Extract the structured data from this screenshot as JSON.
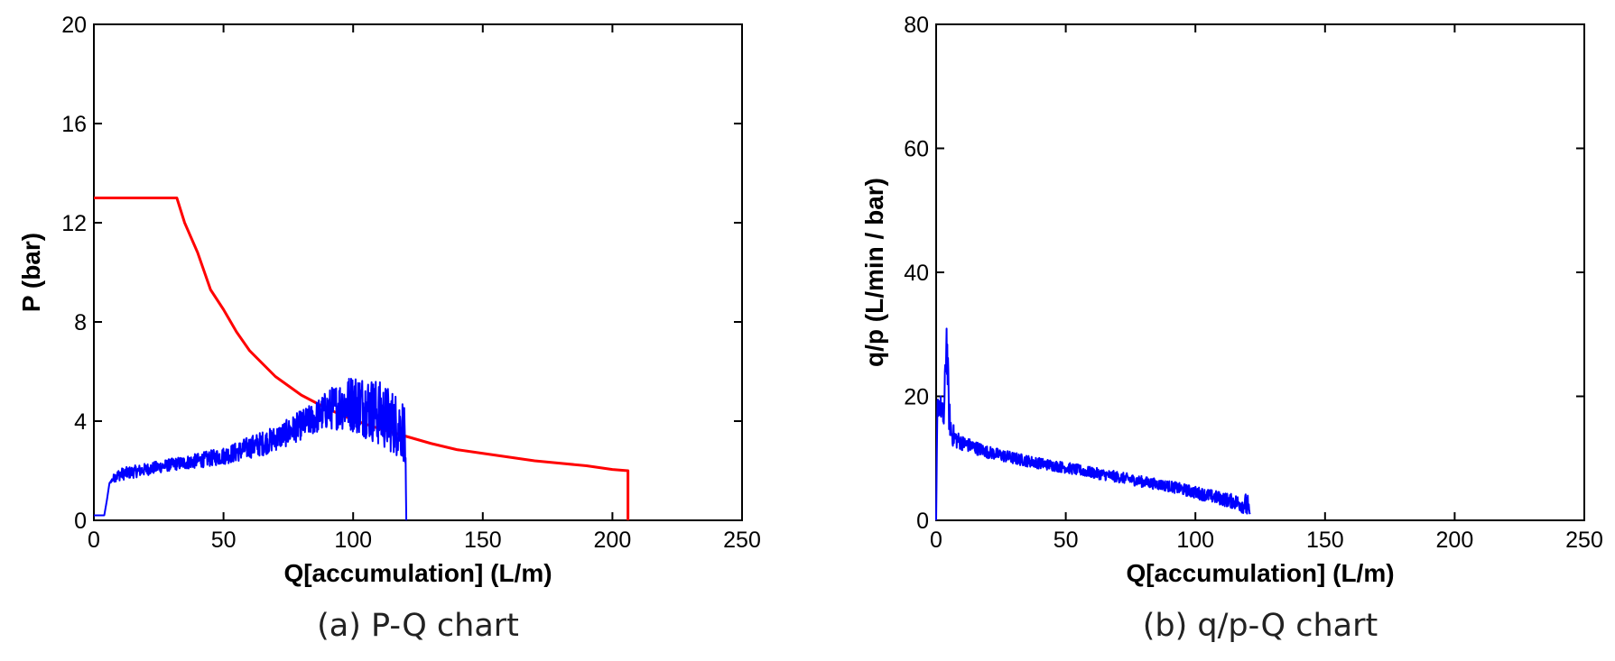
{
  "chart_data": [
    {
      "type": "line",
      "caption": "(a) P-Q chart",
      "xlabel": "Q[accumulation] (L/m)",
      "ylabel": "P (bar)",
      "xlim": [
        0,
        250
      ],
      "ylim": [
        0,
        20
      ],
      "xticks": [
        "0",
        "50",
        "100",
        "150",
        "200",
        "250"
      ],
      "yticks": [
        "0",
        "4",
        "8",
        "12",
        "16",
        "20"
      ],
      "grid": false,
      "series": [
        {
          "color": "#ff0000",
          "style": "smooth",
          "x": [
            0,
            32,
            35,
            40,
            45,
            50,
            55,
            60,
            70,
            80,
            90,
            100,
            110,
            120,
            130,
            140,
            150,
            160,
            170,
            180,
            190,
            200,
            206,
            206
          ],
          "y": [
            13,
            13,
            12.0,
            10.8,
            9.3,
            8.5,
            7.6,
            6.85,
            5.8,
            5.05,
            4.5,
            4.05,
            3.7,
            3.4,
            3.1,
            2.85,
            2.7,
            2.55,
            2.4,
            2.3,
            2.2,
            2.05,
            2.0,
            0
          ]
        },
        {
          "color": "#0000ff",
          "style": "noisy",
          "x": [
            0,
            4,
            5,
            6,
            8,
            10,
            15,
            20,
            30,
            40,
            50,
            55,
            60,
            65,
            70,
            75,
            80,
            85,
            90,
            95,
            100,
            105,
            110,
            115,
            119,
            120,
            120.5
          ],
          "y": [
            0.2,
            0.2,
            0.8,
            1.5,
            1.75,
            1.85,
            1.95,
            2.05,
            2.25,
            2.4,
            2.6,
            2.75,
            2.95,
            3.1,
            3.3,
            3.55,
            3.85,
            4.1,
            4.45,
            4.65,
            4.75,
            4.6,
            4.3,
            4.0,
            3.7,
            3.5,
            0
          ],
          "noise": [
            0,
            0,
            0,
            0,
            0.2,
            0.25,
            0.25,
            0.25,
            0.25,
            0.3,
            0.35,
            0.4,
            0.45,
            0.5,
            0.5,
            0.55,
            0.6,
            0.65,
            0.8,
            1.0,
            1.2,
            1.3,
            1.35,
            1.3,
            1.3,
            1.2,
            0
          ]
        }
      ]
    },
    {
      "type": "line",
      "caption": "(b) q/p-Q chart",
      "xlabel": "Q[accumulation] (L/m)",
      "ylabel": "q/p (L/min / bar)",
      "xlim": [
        0,
        250
      ],
      "ylim": [
        0,
        80
      ],
      "xticks": [
        "0",
        "50",
        "100",
        "150",
        "200",
        "250"
      ],
      "yticks": [
        "0",
        "20",
        "40",
        "60",
        "80"
      ],
      "grid": false,
      "series": [
        {
          "color": "#0000ff",
          "style": "noisy",
          "x": [
            0,
            0.5,
            1,
            2,
            3,
            4,
            5,
            6,
            8,
            10,
            20,
            30,
            40,
            50,
            60,
            70,
            80,
            90,
            100,
            110,
            115,
            119,
            120,
            121
          ],
          "y": [
            0,
            18,
            19,
            18,
            16,
            30,
            17,
            14,
            13,
            12.5,
            11,
            10,
            9.2,
            8.5,
            7.7,
            7.0,
            6.2,
            5.5,
            4.5,
            3.5,
            3.0,
            2.5,
            2.5,
            1
          ],
          "noise": [
            0,
            2,
            2,
            2,
            2,
            5,
            3,
            2,
            1.5,
            1.2,
            1.0,
            1.0,
            0.9,
            0.9,
            0.9,
            0.9,
            0.9,
            0.9,
            1.0,
            1.1,
            1.2,
            1.5,
            2.5,
            0
          ]
        }
      ]
    }
  ]
}
